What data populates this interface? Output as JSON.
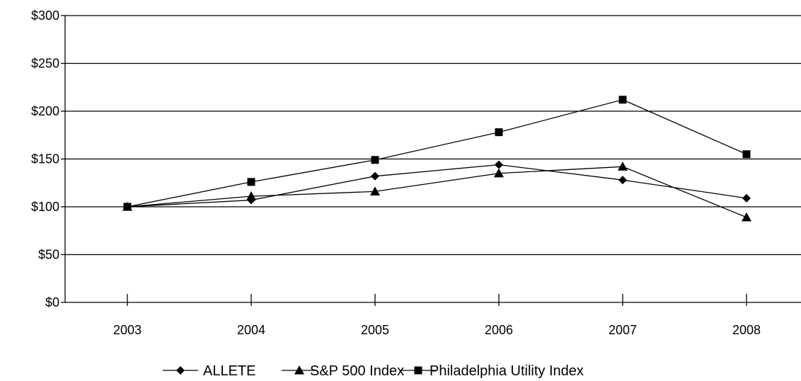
{
  "chart_data": {
    "type": "line",
    "title": "",
    "xlabel": "",
    "ylabel": "",
    "categories": [
      "2003",
      "2004",
      "2005",
      "2006",
      "2007",
      "2008"
    ],
    "ylim": [
      0,
      300
    ],
    "yticks": [
      0,
      50,
      100,
      150,
      200,
      250,
      300
    ],
    "ytick_labels": [
      "$0",
      "$50",
      "$100",
      "$150",
      "$200",
      "$250",
      "$300"
    ],
    "grid": "horizontal",
    "legend_position": "bottom",
    "series": [
      {
        "name": "ALLETE",
        "marker": "diamond",
        "color": "#000000",
        "values": [
          100,
          107,
          132,
          144,
          128,
          109
        ]
      },
      {
        "name": "S&P 500 Index",
        "marker": "triangle",
        "color": "#000000",
        "values": [
          100,
          111,
          116,
          135,
          142,
          89
        ]
      },
      {
        "name": "Philadelphia Utility Index",
        "marker": "square",
        "color": "#000000",
        "values": [
          100,
          126,
          149,
          178,
          212,
          155
        ]
      }
    ]
  }
}
